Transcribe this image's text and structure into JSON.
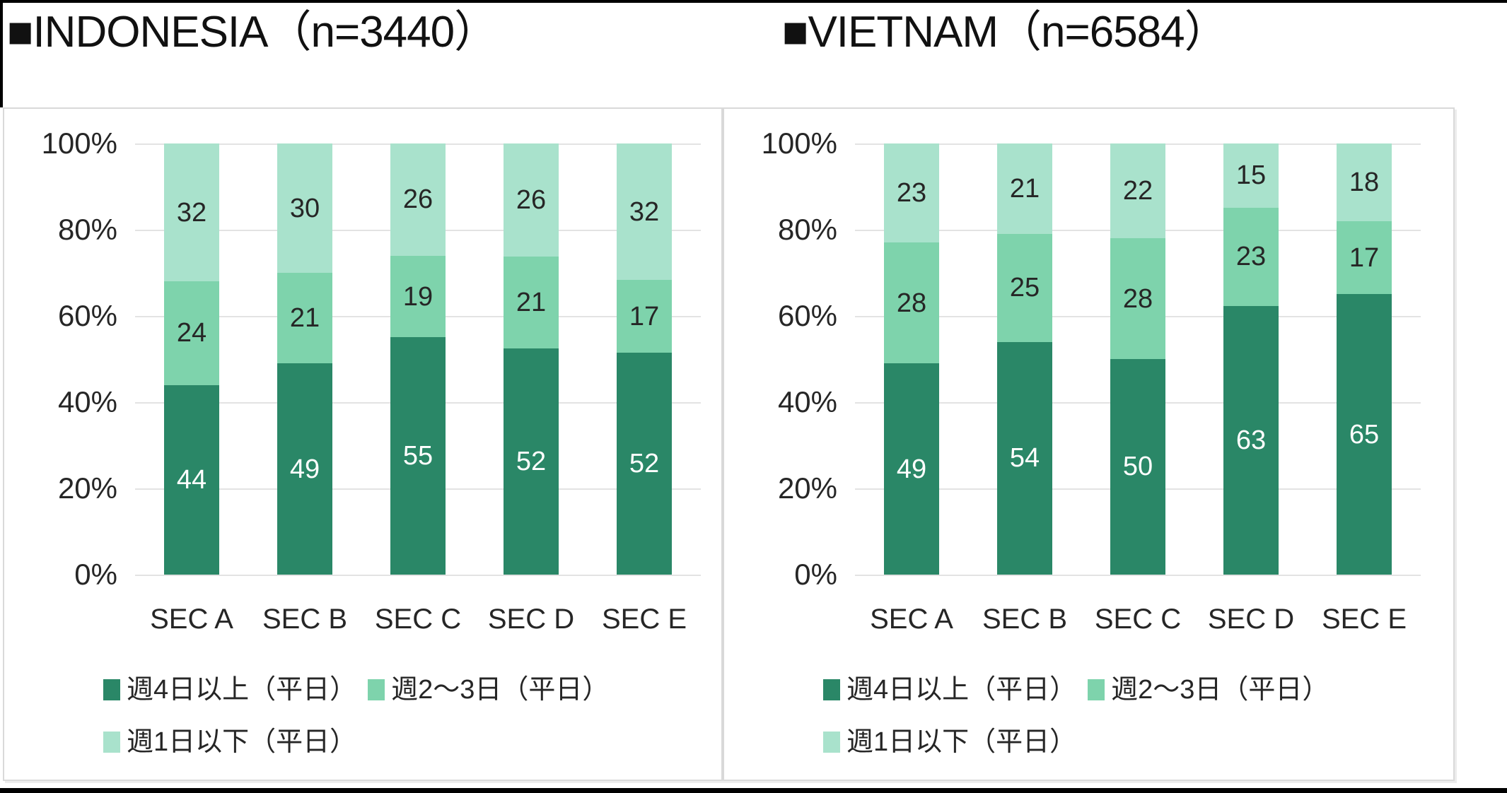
{
  "colors": {
    "series_dark": "#2A8767",
    "series_mid": "#7ED3AC",
    "series_light": "#A9E2CC",
    "grid_line": "#e3e3e3",
    "panel_border": "#d9d9d9",
    "frame_border": "#000000",
    "text": "#262626",
    "value_label_on_dark": "#ffffff"
  },
  "chart_data": [
    {
      "type": "bar",
      "stacked": true,
      "title": "■INDONESIA（n=3440）",
      "categories": [
        "SEC A",
        "SEC B",
        "SEC C",
        "SEC D",
        "SEC E"
      ],
      "series": [
        {
          "name": "週4日以上（平日）",
          "color": "#2A8767",
          "label_color": "#ffffff",
          "values": [
            44,
            49,
            55,
            52,
            52
          ]
        },
        {
          "name": "週2～3日（平日）",
          "color": "#7ED3AC",
          "label_color": "#262626",
          "values": [
            24,
            21,
            19,
            21,
            17
          ]
        },
        {
          "name": "週1日以下（平日）",
          "color": "#A9E2CC",
          "label_color": "#262626",
          "values": [
            32,
            30,
            26,
            26,
            32
          ]
        }
      ],
      "y_ticks": [
        "100%",
        "80%",
        "60%",
        "40%",
        "20%",
        "0%"
      ],
      "ylim": [
        0,
        100
      ],
      "grid": true,
      "legend_position": "bottom-left"
    },
    {
      "type": "bar",
      "stacked": true,
      "title": "■VIETNAM（n=6584）",
      "categories": [
        "SEC A",
        "SEC B",
        "SEC C",
        "SEC D",
        "SEC E"
      ],
      "series": [
        {
          "name": "週4日以上（平日）",
          "color": "#2A8767",
          "label_color": "#ffffff",
          "values": [
            49,
            54,
            50,
            63,
            65
          ]
        },
        {
          "name": "週2～3日（平日）",
          "color": "#7ED3AC",
          "label_color": "#262626",
          "values": [
            28,
            25,
            28,
            23,
            17
          ]
        },
        {
          "name": "週1日以下（平日）",
          "color": "#A9E2CC",
          "label_color": "#262626",
          "values": [
            23,
            21,
            22,
            15,
            18
          ]
        }
      ],
      "y_ticks": [
        "100%",
        "80%",
        "60%",
        "40%",
        "20%",
        "0%"
      ],
      "ylim": [
        0,
        100
      ],
      "grid": true,
      "legend_position": "bottom-left"
    }
  ]
}
